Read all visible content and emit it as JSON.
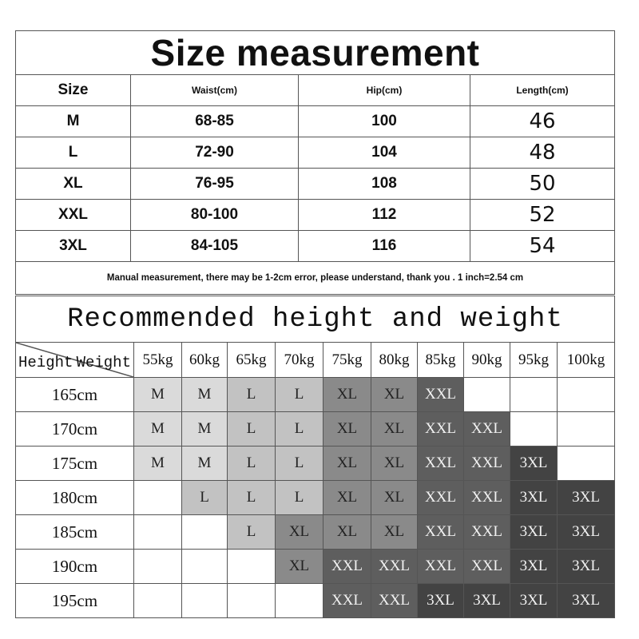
{
  "size_measurement": {
    "title": "Size measurement",
    "headers": [
      "Size",
      "Waist(cm)",
      "Hip(cm)",
      "Length(cm)"
    ],
    "rows": [
      {
        "size": "M",
        "waist": "68-85",
        "hip": "100",
        "length": "46"
      },
      {
        "size": "L",
        "waist": "72-90",
        "hip": "104",
        "length": "48"
      },
      {
        "size": "XL",
        "waist": "76-95",
        "hip": "108",
        "length": "50"
      },
      {
        "size": "XXL",
        "waist": "80-100",
        "hip": "112",
        "length": "52"
      },
      {
        "size": "3XL",
        "waist": "84-105",
        "hip": "116",
        "length": "54"
      }
    ],
    "note": "Manual measurement, there may be 1-2cm error, please understand, thank you .   1 inch=2.54 cm"
  },
  "recommendation": {
    "title": "Recommended height and weight",
    "corner_height": "Height",
    "corner_weight": "Weight",
    "weights": [
      "55kg",
      "60kg",
      "65kg",
      "70kg",
      "75kg",
      "80kg",
      "85kg",
      "90kg",
      "95kg",
      "100kg"
    ],
    "rows": [
      {
        "height": "165cm",
        "sizes": [
          "M",
          "M",
          "L",
          "L",
          "XL",
          "XL",
          "XXL",
          "",
          "",
          ""
        ]
      },
      {
        "height": "170cm",
        "sizes": [
          "M",
          "M",
          "L",
          "L",
          "XL",
          "XL",
          "XXL",
          "XXL",
          "",
          ""
        ]
      },
      {
        "height": "175cm",
        "sizes": [
          "M",
          "M",
          "L",
          "L",
          "XL",
          "XL",
          "XXL",
          "XXL",
          "3XL",
          ""
        ]
      },
      {
        "height": "180cm",
        "sizes": [
          "",
          "L",
          "L",
          "L",
          "XL",
          "XL",
          "XXL",
          "XXL",
          "3XL",
          "3XL"
        ]
      },
      {
        "height": "185cm",
        "sizes": [
          "",
          "",
          "L",
          "XL",
          "XL",
          "XL",
          "XXL",
          "XXL",
          "3XL",
          "3XL"
        ]
      },
      {
        "height": "190cm",
        "sizes": [
          "",
          "",
          "",
          "XL",
          "XXL",
          "XXL",
          "XXL",
          "XXL",
          "3XL",
          "3XL"
        ]
      },
      {
        "height": "195cm",
        "sizes": [
          "",
          "",
          "",
          "",
          "XXL",
          "XXL",
          "3XL",
          "3XL",
          "3XL",
          "3XL"
        ]
      }
    ],
    "size_colors": {
      "M": "#dadada",
      "L": "#c2c2c2",
      "XL": "#8a8a8a",
      "XXL": "#5e5e5e",
      "3XL": "#434343"
    },
    "size_text_colors": {
      "M": "#222222",
      "L": "#222222",
      "XL": "#222222",
      "XXL": "#f2f2f2",
      "3XL": "#f2f2f2"
    }
  }
}
